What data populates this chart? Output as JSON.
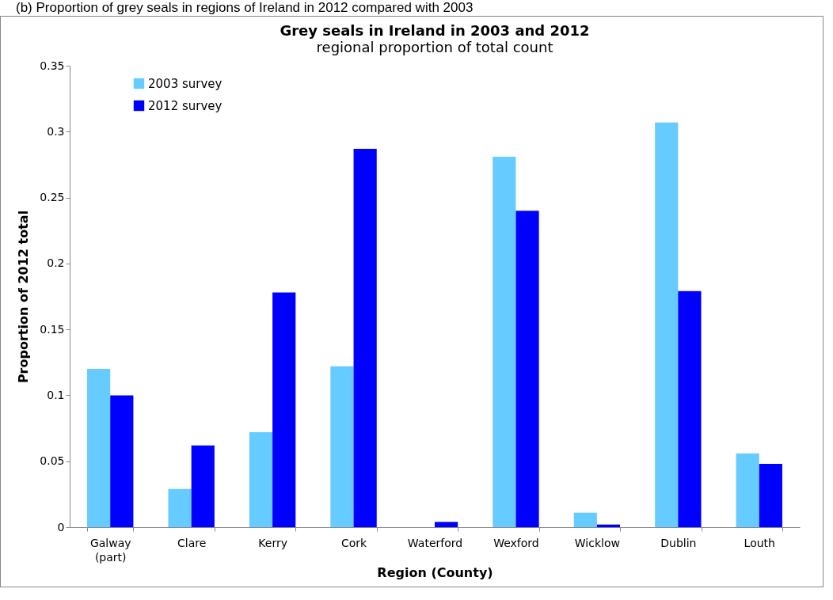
{
  "chart_data": {
    "type": "bar",
    "title": "Grey seals in Ireland in 2003 and 2012",
    "subtitle": "regional proportion of total count",
    "annotations": [
      "(b) Proportion of grey seals in regions of Ireland in 2012 compared with 2003"
    ],
    "xlabel": "Region (County)",
    "ylabel": "Proportion of 2012 total",
    "categories": [
      "Galway (part)",
      "Clare",
      "Kerry",
      "Cork",
      "Waterford",
      "Wexford",
      "Wicklow",
      "Dublin",
      "Louth"
    ],
    "series": [
      {
        "name": "2003 survey",
        "color": "#66ccff",
        "values": [
          0.12,
          0.029,
          0.072,
          0.122,
          0,
          0.281,
          0.011,
          0.307,
          0.056
        ]
      },
      {
        "name": "2012 survey",
        "color": "#0000ff",
        "values": [
          0.1,
          0.062,
          0.178,
          0.287,
          0.004,
          0.24,
          0.002,
          0.179,
          0.048
        ]
      }
    ],
    "ylim": [
      0,
      0.35
    ],
    "yticks": [
      0,
      0.05,
      0.1,
      0.15,
      0.2,
      0.25,
      0.3,
      0.35
    ],
    "grid": false,
    "legend": "top left"
  }
}
